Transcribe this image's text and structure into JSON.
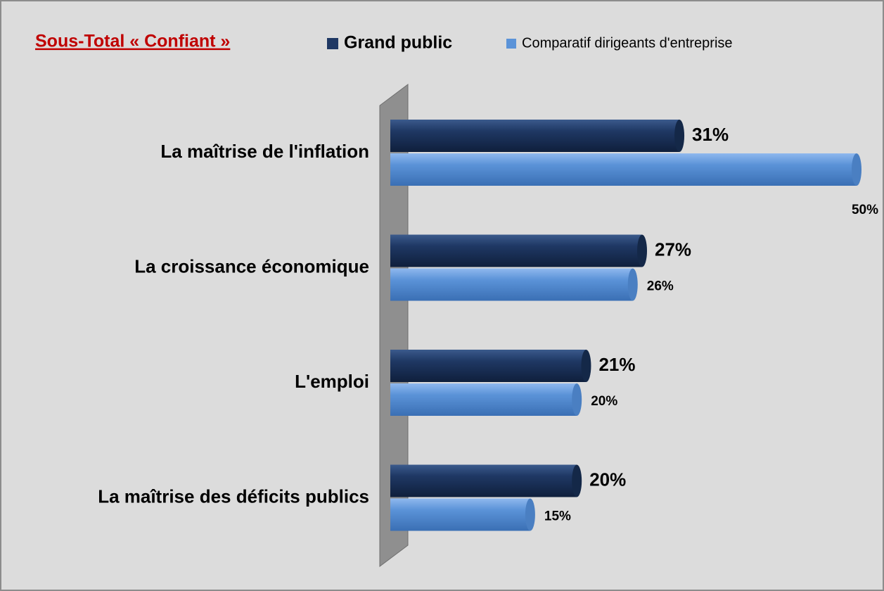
{
  "chart_data": {
    "type": "hbar",
    "title": "Sous-Total « Confiant »",
    "categories": [
      "La maîtrise de l'inflation",
      "La croissance économique",
      "L'emploi",
      "La maîtrise des déficits publics"
    ],
    "series": [
      {
        "name": "Grand public",
        "color": "#1f3864",
        "values": [
          31,
          27,
          21,
          20
        ],
        "value_labels": [
          "31%",
          "27%",
          "21%",
          "20%"
        ]
      },
      {
        "name": "Comparatif dirigeants d'entreprise",
        "color": "#5b93d8",
        "values": [
          50,
          26,
          20,
          15
        ],
        "value_labels": [
          "50%",
          "26%",
          "20%",
          "15%"
        ]
      }
    ],
    "xlim": [
      0,
      50
    ]
  }
}
